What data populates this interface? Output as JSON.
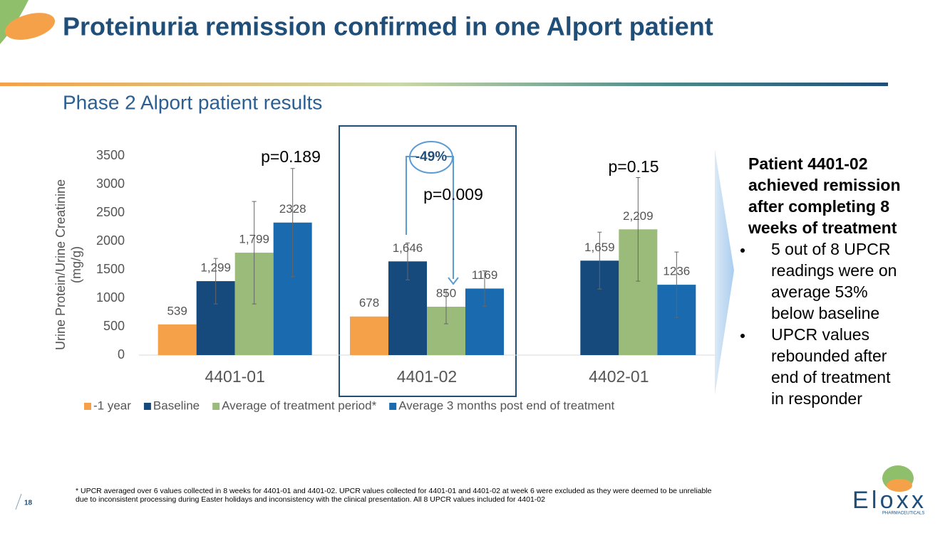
{
  "header": {
    "title": "Proteinuria remission confirmed in one Alport patient",
    "subtitle": "Phase 2 Alport patient results"
  },
  "chart_data": {
    "type": "bar",
    "ylabel": [
      "Urine Protein/Urine Creatinine",
      "(mg/g)"
    ],
    "categories": [
      "4401-01",
      "4401-02",
      "4402-01"
    ],
    "series": [
      {
        "name": "-1 year",
        "color": "#f4a14a",
        "values": [
          539,
          678,
          null
        ],
        "errors": [
          null,
          null,
          null
        ]
      },
      {
        "name": "Baseline",
        "color": "#174a7c",
        "values": [
          1299,
          1646,
          1659
        ],
        "value_labels": [
          "1,299",
          "1,646",
          "1,659"
        ],
        "errors": [
          400,
          325,
          500
        ]
      },
      {
        "name": "Average of treatment period*",
        "color": "#9bbb7a",
        "values": [
          1799,
          850,
          2209
        ],
        "value_labels": [
          "1,799",
          "850",
          "2,209"
        ],
        "errors": [
          900,
          300,
          910
        ]
      },
      {
        "name": "Average 3 months post end of treatment",
        "color": "#1a6aaf",
        "values": [
          2328,
          1169,
          1236
        ],
        "errors": [
          950,
          310,
          575
        ]
      }
    ],
    "ylim": [
      0,
      3500
    ],
    "yticks": [
      0,
      500,
      1000,
      1500,
      2000,
      2500,
      3000,
      3500
    ],
    "grid": false,
    "legend": "bottom",
    "annotations": [
      "p=0.189",
      "-49%",
      "p=0.009",
      "p=0.15"
    ]
  },
  "side_panel": {
    "heading": [
      "Patient 4401-02",
      "achieved remission",
      "after completing 8",
      "weeks of treatment"
    ],
    "bullets": [
      [
        "5 out of 8 UPCR",
        "readings were on",
        "average 53%",
        "below baseline"
      ],
      [
        "UPCR values",
        "rebounded after",
        "end of treatment",
        "in responder"
      ]
    ]
  },
  "footnote": [
    "* UPCR averaged over 6 values collected in 8 weeks for 4401-01 and 4401-02. UPCR values collected for 4401-01 and 4401-02 at week 6 were excluded as they were deemed to be unreliable",
    "due to inconsistent processing during Easter holidays and inconsistency with the clinical presentation. All 8 UPCR values included for 4401-02"
  ],
  "page_number": "18",
  "logo": {
    "name": "Eloxx",
    "tagline": "PHARMACEUTICALS"
  }
}
